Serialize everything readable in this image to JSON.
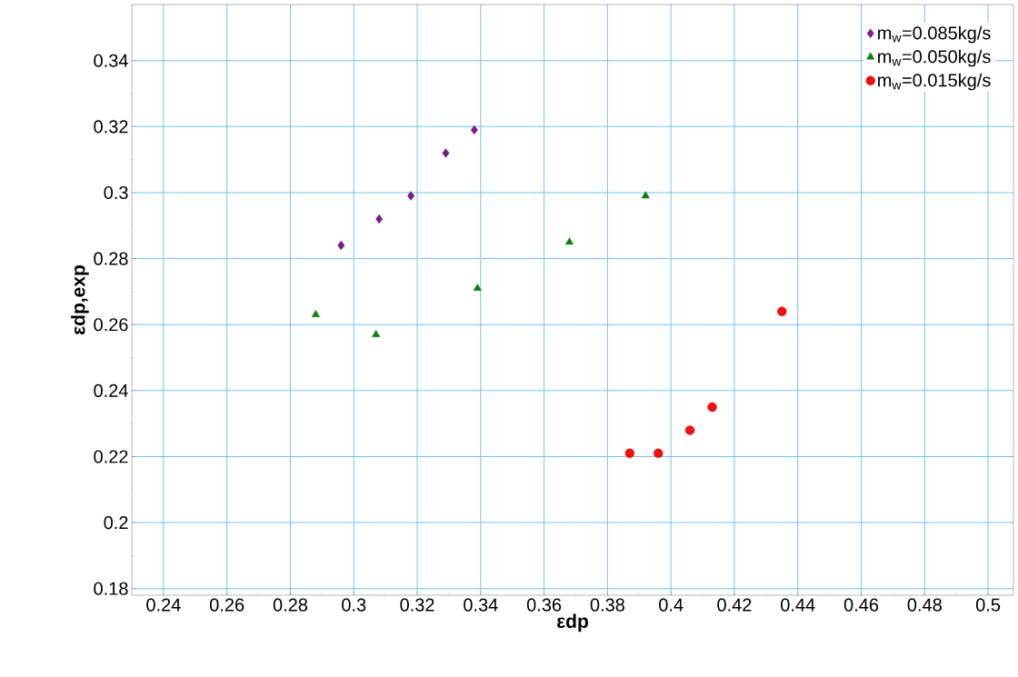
{
  "chart_data": {
    "type": "scatter",
    "xlabel": "εdp",
    "ylabel": "εdp,exp",
    "xlim": [
      0.23,
      0.508
    ],
    "ylim": [
      0.178,
      0.357
    ],
    "xticks": [
      0.24,
      0.26,
      0.28,
      0.3,
      0.32,
      0.34,
      0.36,
      0.38,
      0.4,
      0.42,
      0.44,
      0.46,
      0.48,
      0.5
    ],
    "yticks": [
      0.18,
      0.2,
      0.22,
      0.24,
      0.26,
      0.28,
      0.3,
      0.32,
      0.34
    ],
    "grid": true,
    "legend": "top right",
    "series": [
      {
        "name": "m$_{w}$=0.085kg/s",
        "color": "#7b1a8c",
        "marker": "diamond",
        "x": [
          0.296,
          0.308,
          0.318,
          0.329,
          0.338
        ],
        "values": [
          0.284,
          0.292,
          0.299,
          0.312,
          0.319
        ]
      },
      {
        "name": "m$_{w}$=0.050kg/s",
        "color": "#118011",
        "marker": "triangle",
        "x": [
          0.288,
          0.307,
          0.339,
          0.368,
          0.392
        ],
        "values": [
          0.263,
          0.257,
          0.271,
          0.285,
          0.299
        ]
      },
      {
        "name": "m$_{w}$=0.015kg/s",
        "color": "#ee1111",
        "marker": "circle",
        "x": [
          0.387,
          0.396,
          0.406,
          0.413,
          0.435
        ],
        "values": [
          0.221,
          0.221,
          0.228,
          0.235,
          0.264
        ]
      }
    ]
  }
}
